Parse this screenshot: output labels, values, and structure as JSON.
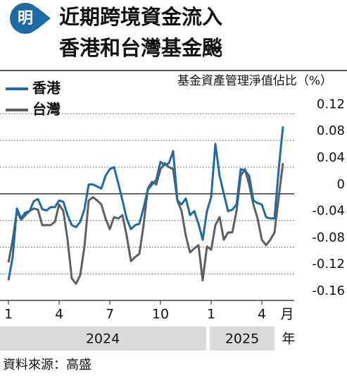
{
  "logo": "明",
  "chart_data": {
    "type": "line",
    "title": [
      "近期跨境資金流入",
      "香港和台灣基金飈"
    ],
    "y_label": "基金資產管理淨值佔比（%）",
    "x_unit": "月",
    "years": [
      "2024",
      "2025"
    ],
    "year_unit": "年",
    "source": "資料來源：高盛",
    "categories": [
      "1",
      null,
      null,
      null,
      null,
      null,
      null,
      null,
      null,
      null,
      null,
      null,
      "4",
      null,
      null,
      null,
      null,
      null,
      null,
      null,
      null,
      null,
      null,
      null,
      "7",
      null,
      null,
      null,
      null,
      null,
      null,
      null,
      null,
      null,
      null,
      null,
      "10",
      null,
      null,
      null,
      null,
      null,
      null,
      null,
      null,
      null,
      null,
      null,
      "1",
      null,
      null,
      null,
      null,
      null,
      null,
      null,
      null,
      null,
      null,
      null,
      "4",
      null,
      null,
      null,
      null,
      null
    ],
    "series": [
      {
        "name": "香港",
        "color": "#1f6aa5",
        "values": [
          -0.13,
          -0.095,
          -0.022,
          -0.037,
          -0.028,
          -0.026,
          -0.011,
          -0.008,
          -0.023,
          -0.025,
          -0.02,
          -0.02,
          -0.01,
          -0.012,
          -0.032,
          -0.047,
          -0.05,
          -0.042,
          -0.023,
          0.014,
          0.014,
          0.011,
          0.008,
          0.027,
          0.037,
          0.04,
          0.016,
          -0.01,
          -0.037,
          -0.053,
          -0.047,
          -0.045,
          -0.021,
          0.006,
          0.014,
          0.021,
          0.048,
          0.043,
          0.046,
          0.064,
          -0.01,
          -0.016,
          -0.007,
          -0.032,
          -0.026,
          -0.045,
          -0.069,
          -0.026,
          -0.005,
          0.075,
          0.027,
          0.0,
          -0.026,
          -0.024,
          -0.016,
          0.037,
          0.035,
          0.027,
          -0.01,
          -0.014,
          -0.016,
          -0.035,
          -0.037,
          -0.037,
          0.037,
          0.101
        ]
      },
      {
        "name": "台灣",
        "color": "#5a5f63",
        "values": [
          -0.103,
          -0.069,
          -0.026,
          -0.039,
          -0.032,
          -0.026,
          -0.022,
          -0.024,
          -0.047,
          -0.047,
          -0.047,
          -0.042,
          -0.016,
          -0.026,
          -0.069,
          -0.127,
          -0.135,
          -0.122,
          -0.079,
          -0.01,
          -0.005,
          -0.01,
          -0.016,
          -0.037,
          -0.053,
          -0.035,
          -0.037,
          -0.032,
          -0.063,
          -0.101,
          -0.095,
          -0.09,
          -0.047,
          0.008,
          0.018,
          0.014,
          0.037,
          0.046,
          0.04,
          0.037,
          -0.01,
          -0.026,
          -0.063,
          -0.088,
          -0.082,
          -0.077,
          -0.13,
          -0.079,
          -0.084,
          -0.047,
          -0.035,
          -0.069,
          -0.058,
          -0.058,
          -0.026,
          0.027,
          0.037,
          0.014,
          -0.016,
          -0.037,
          -0.069,
          -0.077,
          -0.069,
          -0.058,
          -0.005,
          0.046
        ]
      }
    ],
    "ylim": [
      -0.16,
      0.185
    ],
    "yticks": [
      0.12,
      0.08,
      0.04,
      0,
      -0.04,
      -0.08,
      -0.12,
      -0.16
    ],
    "grid": true
  }
}
